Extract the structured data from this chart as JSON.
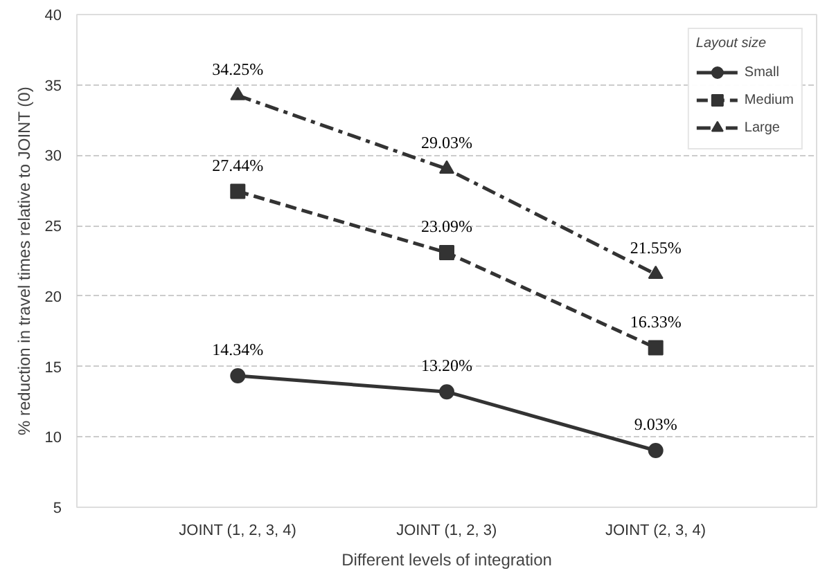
{
  "chart_data": {
    "type": "line",
    "xlabel": "Different levels of integration",
    "ylabel": "% reduction in travel times relative to JOINT (0)",
    "legend_title": "Layout size",
    "categories": [
      "JOINT (1, 2, 3, 4)",
      "JOINT (1, 2, 3)",
      "JOINT (2, 3, 4)"
    ],
    "series": [
      {
        "name": "Small",
        "color": "#333333",
        "marker": "circle",
        "line_style": "solid",
        "values": [
          14.34,
          13.2,
          9.03
        ],
        "value_labels": [
          "14.34%",
          "13.20%",
          "9.03%"
        ]
      },
      {
        "name": "Medium",
        "color": "#333333",
        "marker": "square",
        "line_style": "dashed",
        "values": [
          27.44,
          23.09,
          16.33
        ],
        "value_labels": [
          "27.44%",
          "23.09%",
          "16.33%"
        ]
      },
      {
        "name": "Large",
        "color": "#333333",
        "marker": "triangle",
        "line_style": "dashdot",
        "values": [
          34.25,
          29.03,
          21.55
        ],
        "value_labels": [
          "34.25%",
          "29.03%",
          "21.55%"
        ]
      }
    ],
    "ylim": [
      5,
      40
    ],
    "yticks": [
      5,
      10,
      15,
      20,
      25,
      30,
      35,
      40
    ],
    "grid": "y",
    "legend": "top right"
  }
}
